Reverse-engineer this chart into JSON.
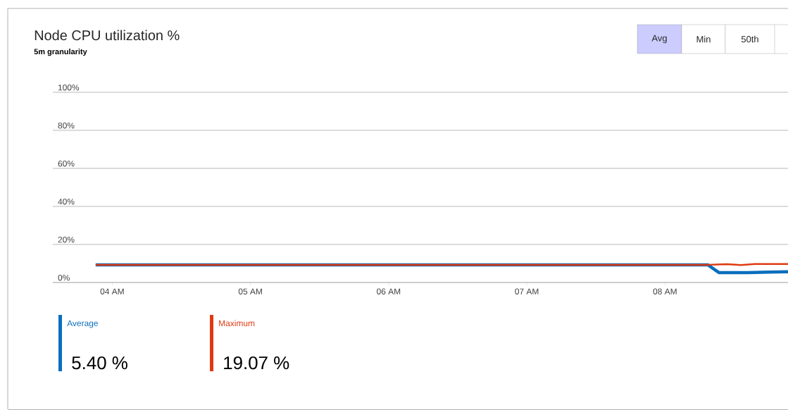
{
  "chart_data": {
    "type": "line",
    "title": "Node CPU utilization %",
    "subtitle": "**5m granularity**",
    "annotations": [
      "Avg",
      "Min",
      "50th",
      "5.40 %",
      "19.07 %"
    ],
    "series": [
      {
        "name": "Average",
        "color": "#0a6ebd",
        "x": [
          3.88,
          8.31,
          8.39,
          8.6,
          8.75,
          8.89
        ],
        "values": [
          9.3,
          9.3,
          5.2,
          5.2,
          5.5,
          5.6
        ]
      },
      {
        "name": "Maximum",
        "color": "#e03a12",
        "x": [
          3.88,
          8.31,
          8.45,
          8.55,
          8.65,
          8.89
        ],
        "values": [
          9.3,
          9.3,
          9.6,
          9.2,
          9.7,
          9.7
        ]
      }
    ],
    "xlim": [
      3.57,
      8.89
    ],
    "ylim": [
      0,
      100
    ],
    "xticks": [
      {
        "value": 4,
        "label": "04 AM"
      },
      {
        "value": 5,
        "label": "05 AM"
      },
      {
        "value": 6,
        "label": "06 AM"
      },
      {
        "value": 7,
        "label": "07 AM"
      },
      {
        "value": 8,
        "label": "08 AM"
      }
    ],
    "yticks": [
      {
        "value": 0,
        "label": "0%"
      },
      {
        "value": 20,
        "label": "20%"
      },
      {
        "value": 40,
        "label": "40%"
      },
      {
        "value": 60,
        "label": "60%"
      },
      {
        "value": 80,
        "label": "80%"
      },
      {
        "value": 100,
        "label": "100%"
      }
    ],
    "grid": "y",
    "legend": "bottom",
    "marker": "none",
    "line_style": "solid"
  }
}
